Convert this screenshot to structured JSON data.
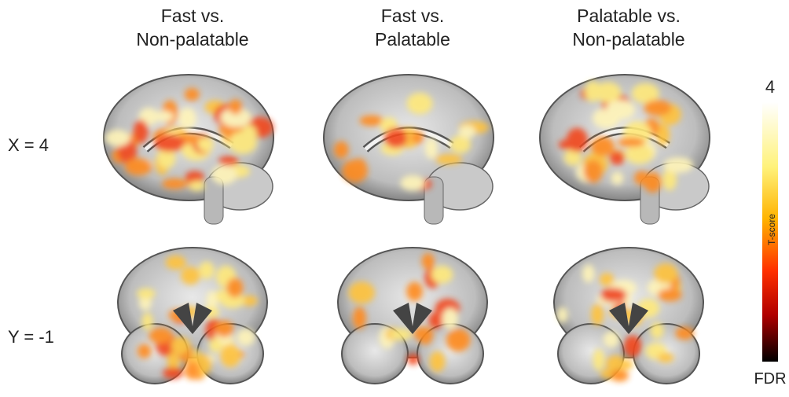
{
  "columns": [
    {
      "line1": "Fast vs.",
      "line2": "Non-palatable"
    },
    {
      "line1": "Fast vs.",
      "line2": "Palatable"
    },
    {
      "line1": "Palatable vs.",
      "line2": "Non-palatable"
    }
  ],
  "rows": [
    "X = 4",
    "Y = -1"
  ],
  "colorbar": {
    "max": "4",
    "label": "T-score",
    "min": "FDR"
  }
}
